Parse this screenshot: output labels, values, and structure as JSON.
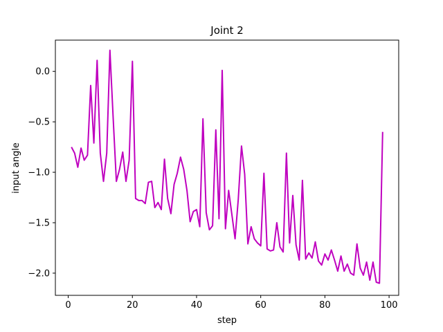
{
  "chart_data": {
    "type": "line",
    "title": "Joint 2",
    "xlabel": "step",
    "ylabel": "input angle",
    "xlim": [
      -4,
      103
    ],
    "ylim": [
      -2.22,
      0.31
    ],
    "xticks": [
      0,
      20,
      40,
      60,
      80,
      100
    ],
    "xtick_labels": [
      "0",
      "20",
      "40",
      "60",
      "80",
      "100"
    ],
    "yticks": [
      0.0,
      -0.5,
      -1.0,
      -1.5,
      -2.0
    ],
    "ytick_labels": [
      "0.0",
      "−0.5",
      "−1.0",
      "−1.5",
      "−2.0"
    ],
    "grid": false,
    "series": [
      {
        "color": "#bf00bf",
        "x": [
          1,
          2,
          3,
          4,
          5,
          6,
          7,
          8,
          9,
          10,
          11,
          12,
          13,
          14,
          15,
          16,
          17,
          18,
          19,
          20,
          21,
          22,
          23,
          24,
          25,
          26,
          27,
          28,
          29,
          30,
          31,
          32,
          33,
          34,
          35,
          36,
          37,
          38,
          39,
          40,
          41,
          42,
          43,
          44,
          45,
          46,
          47,
          48,
          49,
          50,
          51,
          52,
          53,
          54,
          55,
          56,
          57,
          58,
          59,
          60,
          61,
          62,
          63,
          64,
          65,
          66,
          67,
          68,
          69,
          70,
          71,
          72,
          73,
          74,
          75,
          76,
          77,
          78,
          79,
          80,
          81,
          82,
          83,
          84,
          85,
          86,
          87,
          88,
          89,
          90,
          91,
          92,
          93,
          94,
          95,
          96,
          97,
          98
        ],
        "y": [
          -0.75,
          -0.81,
          -0.95,
          -0.76,
          -0.88,
          -0.83,
          -0.14,
          -0.71,
          0.11,
          -0.81,
          -1.09,
          -0.81,
          0.21,
          -0.45,
          -1.09,
          -0.97,
          -0.8,
          -1.09,
          -0.88,
          0.1,
          -1.26,
          -1.28,
          -1.28,
          -1.31,
          -1.1,
          -1.09,
          -1.35,
          -1.3,
          -1.37,
          -0.87,
          -1.26,
          -1.41,
          -1.12,
          -1.01,
          -0.85,
          -0.97,
          -1.18,
          -1.49,
          -1.39,
          -1.37,
          -1.54,
          -0.47,
          -1.4,
          -1.57,
          -1.53,
          -0.58,
          -1.46,
          0.01,
          -1.56,
          -1.18,
          -1.42,
          -1.66,
          -1.27,
          -0.74,
          -1.02,
          -1.71,
          -1.54,
          -1.66,
          -1.7,
          -1.73,
          -1.01,
          -1.76,
          -1.78,
          -1.77,
          -1.5,
          -1.74,
          -1.79,
          -0.81,
          -1.7,
          -1.23,
          -1.72,
          -1.87,
          -1.08,
          -1.86,
          -1.8,
          -1.85,
          -1.69,
          -1.88,
          -1.92,
          -1.81,
          -1.87,
          -1.77,
          -1.87,
          -1.98,
          -1.83,
          -1.98,
          -1.91,
          -2.0,
          -2.02,
          -1.71,
          -1.95,
          -2.02,
          -1.89,
          -2.07,
          -1.89,
          -2.09,
          -2.1,
          -0.6
        ]
      }
    ]
  }
}
